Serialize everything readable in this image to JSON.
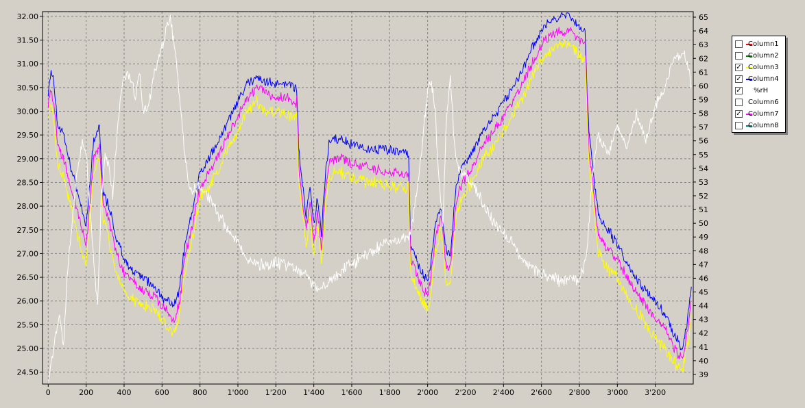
{
  "chart_data": {
    "type": "line",
    "background_color": "#d4d0c8",
    "plot_background_color": "#d4d0c8",
    "grid": true,
    "legend_placement": "right",
    "xlim": [
      -30,
      3400
    ],
    "ylim_left": [
      24.25,
      32.1
    ],
    "ylim_right": [
      38.3,
      65.4
    ],
    "x_ticks": [
      0,
      200,
      400,
      600,
      800,
      1000,
      1200,
      1400,
      1600,
      1800,
      2000,
      2200,
      2400,
      2600,
      2800,
      3000,
      3200
    ],
    "x_tick_labels": [
      "0",
      "200",
      "400",
      "600",
      "800",
      "1'000",
      "1'200",
      "1'400",
      "1'600",
      "1'800",
      "2'000",
      "2'200",
      "2'400",
      "2'600",
      "2'800",
      "3'000",
      "3'200"
    ],
    "y_left_ticks": [
      24.5,
      25.0,
      25.5,
      26.0,
      26.5,
      27.0,
      27.5,
      28.0,
      28.5,
      29.0,
      29.5,
      30.0,
      30.5,
      31.0,
      31.5,
      32.0
    ],
    "y_left_tick_labels": [
      "24.50",
      "25.00",
      "25.50",
      "26.00",
      "26.50",
      "27.00",
      "27.50",
      "28.00",
      "28.50",
      "29.00",
      "29.50",
      "30.00",
      "30.50",
      "31.00",
      "31.50",
      "32.00"
    ],
    "y_right_ticks": [
      39,
      40,
      41,
      42,
      43,
      44,
      45,
      46,
      47,
      48,
      49,
      50,
      51,
      52,
      53,
      54,
      55,
      56,
      57,
      58,
      59,
      60,
      61,
      62,
      63,
      64,
      65
    ],
    "y_right_tick_labels": [
      "39",
      "40",
      "41",
      "42",
      "43",
      "44",
      "45",
      "46",
      "47",
      "48",
      "49",
      "50",
      "51",
      "52",
      "53",
      "54",
      "55",
      "56",
      "57",
      "58",
      "59",
      "60",
      "61",
      "62",
      "63",
      "64",
      "65"
    ],
    "legend": [
      {
        "label": "Column1",
        "color": "#ff0000",
        "checked": false
      },
      {
        "label": "Column2",
        "color": "#008000",
        "checked": false
      },
      {
        "label": "Column3",
        "color": "#ffff00",
        "checked": true
      },
      {
        "label": "Column4",
        "color": "#0000ff",
        "checked": true
      },
      {
        "label": "%rH",
        "color": "#ffffff",
        "checked": true
      },
      {
        "label": "Column6",
        "color": "#ffffff",
        "checked": false
      },
      {
        "label": "Column7",
        "color": "#ff00ff",
        "checked": true
      },
      {
        "label": "Column8",
        "color": "#008080",
        "checked": false
      }
    ],
    "series": [
      {
        "name": "Column4",
        "color": "#0000ff",
        "axis": "left",
        "noise": 0.3,
        "x": [
          0,
          15,
          30,
          50,
          80,
          120,
          160,
          200,
          240,
          270,
          290,
          320,
          360,
          400,
          450,
          500,
          560,
          620,
          660,
          690,
          720,
          760,
          800,
          850,
          900,
          950,
          1000,
          1050,
          1100,
          1150,
          1200,
          1250,
          1310,
          1320,
          1340,
          1360,
          1380,
          1400,
          1420,
          1440,
          1460,
          1480,
          1500,
          1550,
          1600,
          1700,
          1800,
          1900,
          1910,
          1940,
          1970,
          2000,
          2020,
          2040,
          2070,
          2100,
          2120,
          2150,
          2180,
          2220,
          2280,
          2350,
          2400,
          2450,
          2500,
          2550,
          2600,
          2650,
          2700,
          2750,
          2800,
          2830,
          2850,
          2870,
          2900,
          2950,
          3000,
          3050,
          3100,
          3150,
          3200,
          3250,
          3300,
          3340,
          3370,
          3390
        ],
        "y": [
          30.4,
          30.9,
          30.6,
          29.7,
          29.5,
          28.8,
          28.2,
          27.6,
          29.4,
          29.7,
          28.3,
          28.0,
          27.3,
          26.9,
          26.6,
          26.5,
          26.3,
          26.0,
          25.9,
          26.2,
          27.2,
          27.9,
          28.7,
          29.0,
          29.4,
          29.8,
          30.2,
          30.6,
          30.7,
          30.6,
          30.6,
          30.6,
          30.5,
          29.2,
          28.5,
          27.8,
          28.4,
          27.6,
          28.2,
          27.4,
          28.6,
          29.3,
          29.4,
          29.4,
          29.3,
          29.2,
          29.2,
          29.1,
          27.2,
          26.9,
          26.6,
          26.4,
          26.9,
          27.6,
          28.0,
          27.0,
          27.0,
          28.4,
          28.8,
          29.0,
          29.5,
          29.9,
          30.2,
          30.5,
          30.9,
          31.3,
          31.7,
          31.9,
          32.0,
          32.0,
          31.8,
          31.6,
          29.5,
          28.8,
          27.8,
          27.5,
          27.2,
          26.8,
          26.5,
          26.2,
          26.0,
          25.7,
          25.3,
          25.0,
          25.6,
          26.3
        ]
      },
      {
        "name": "Column7",
        "color": "#ff00ff",
        "axis": "left",
        "noise": 0.3,
        "x": [
          0,
          15,
          30,
          50,
          80,
          120,
          160,
          200,
          240,
          270,
          290,
          320,
          360,
          400,
          450,
          500,
          560,
          620,
          660,
          690,
          720,
          760,
          800,
          850,
          900,
          950,
          1000,
          1050,
          1100,
          1150,
          1200,
          1250,
          1310,
          1320,
          1340,
          1360,
          1380,
          1400,
          1420,
          1440,
          1460,
          1480,
          1500,
          1550,
          1600,
          1700,
          1800,
          1900,
          1910,
          1940,
          1970,
          2000,
          2020,
          2040,
          2070,
          2100,
          2120,
          2150,
          2180,
          2220,
          2280,
          2350,
          2400,
          2450,
          2500,
          2550,
          2600,
          2650,
          2700,
          2750,
          2800,
          2830,
          2850,
          2870,
          2900,
          2950,
          3000,
          3050,
          3100,
          3150,
          3200,
          3250,
          3300,
          3340,
          3370,
          3390
        ],
        "y": [
          30.2,
          30.5,
          30.2,
          29.3,
          29.0,
          28.4,
          27.8,
          27.2,
          29.0,
          29.3,
          28.0,
          27.7,
          27.0,
          26.6,
          26.4,
          26.2,
          26.1,
          25.8,
          25.6,
          25.9,
          26.9,
          27.6,
          28.4,
          28.7,
          29.1,
          29.5,
          29.9,
          30.3,
          30.5,
          30.4,
          30.3,
          30.3,
          30.2,
          28.9,
          28.1,
          27.5,
          28.1,
          27.2,
          27.9,
          27.1,
          28.3,
          28.9,
          29.0,
          29.0,
          28.9,
          28.8,
          28.7,
          28.7,
          26.9,
          26.6,
          26.3,
          26.1,
          26.6,
          27.3,
          27.8,
          26.7,
          26.7,
          28.1,
          28.5,
          28.7,
          29.2,
          29.6,
          29.9,
          30.2,
          30.6,
          31.0,
          31.4,
          31.6,
          31.7,
          31.7,
          31.5,
          31.4,
          29.2,
          28.5,
          27.4,
          27.1,
          26.9,
          26.5,
          26.2,
          25.9,
          25.6,
          25.4,
          25.0,
          24.8,
          25.3,
          26.0
        ]
      },
      {
        "name": "Column3",
        "color": "#ffff00",
        "axis": "left",
        "noise": 0.35,
        "x": [
          0,
          15,
          30,
          50,
          80,
          120,
          160,
          200,
          240,
          270,
          290,
          320,
          360,
          400,
          450,
          500,
          560,
          620,
          660,
          690,
          720,
          760,
          800,
          850,
          900,
          950,
          1000,
          1050,
          1100,
          1150,
          1200,
          1250,
          1310,
          1320,
          1340,
          1360,
          1380,
          1400,
          1420,
          1440,
          1460,
          1480,
          1500,
          1550,
          1600,
          1700,
          1800,
          1900,
          1910,
          1940,
          1970,
          2000,
          2020,
          2040,
          2070,
          2100,
          2120,
          2150,
          2180,
          2220,
          2280,
          2350,
          2400,
          2450,
          2500,
          2550,
          2600,
          2650,
          2700,
          2750,
          2800,
          2830,
          2850,
          2870,
          2900,
          2950,
          3000,
          3050,
          3100,
          3150,
          3200,
          3250,
          3300,
          3340,
          3370,
          3390
        ],
        "y": [
          30.0,
          30.2,
          29.8,
          28.9,
          28.6,
          28.0,
          27.3,
          26.8,
          28.7,
          29.0,
          27.7,
          27.3,
          26.6,
          26.2,
          26.0,
          25.9,
          25.8,
          25.5,
          25.3,
          25.6,
          26.6,
          27.3,
          28.2,
          28.4,
          28.8,
          29.2,
          29.6,
          30.0,
          30.2,
          30.0,
          30.0,
          29.9,
          29.9,
          28.6,
          27.8,
          27.2,
          27.8,
          26.9,
          27.6,
          26.8,
          28.0,
          28.6,
          28.7,
          28.7,
          28.6,
          28.5,
          28.4,
          28.4,
          26.6,
          26.3,
          26.0,
          25.8,
          26.3,
          27.0,
          27.5,
          26.4,
          26.4,
          27.8,
          28.2,
          28.4,
          28.9,
          29.3,
          29.6,
          29.9,
          30.3,
          30.7,
          31.1,
          31.3,
          31.4,
          31.4,
          31.2,
          31.1,
          28.9,
          28.2,
          27.0,
          26.7,
          26.5,
          26.1,
          25.8,
          25.5,
          25.2,
          25.0,
          24.7,
          24.5,
          25.0,
          25.7
        ]
      },
      {
        "name": "%rH",
        "color": "#ffffff",
        "axis": "right",
        "noise": 1.2,
        "x": [
          0,
          20,
          40,
          60,
          80,
          100,
          120,
          140,
          160,
          180,
          200,
          220,
          240,
          260,
          280,
          300,
          320,
          340,
          360,
          380,
          400,
          420,
          440,
          460,
          480,
          500,
          520,
          540,
          560,
          580,
          600,
          620,
          640,
          660,
          680,
          700,
          720,
          740,
          760,
          780,
          800,
          850,
          900,
          950,
          1000,
          1050,
          1100,
          1150,
          1200,
          1250,
          1300,
          1320,
          1340,
          1360,
          1380,
          1400,
          1420,
          1440,
          1460,
          1480,
          1500,
          1550,
          1600,
          1650,
          1700,
          1750,
          1800,
          1850,
          1900,
          1920,
          1940,
          1960,
          1980,
          2000,
          2020,
          2040,
          2060,
          2080,
          2100,
          2120,
          2140,
          2160,
          2180,
          2200,
          2250,
          2300,
          2350,
          2400,
          2450,
          2500,
          2550,
          2600,
          2650,
          2700,
          2750,
          2800,
          2820,
          2840,
          2860,
          2880,
          2900,
          2950,
          3000,
          3050,
          3100,
          3150,
          3200,
          3250,
          3300,
          3350,
          3380,
          3390
        ],
        "y": [
          38.5,
          40.0,
          42.0,
          43.5,
          41.0,
          46.0,
          49.0,
          52.0,
          54.5,
          56.0,
          55.0,
          51.0,
          47.0,
          44.0,
          52.0,
          55.0,
          54.0,
          52.0,
          56.0,
          59.0,
          60.5,
          61.0,
          60.5,
          59.0,
          61.0,
          58.0,
          58.5,
          59.5,
          61.0,
          62.0,
          63.0,
          64.0,
          65.0,
          63.5,
          61.0,
          58.0,
          55.0,
          53.0,
          52.5,
          52.5,
          52.8,
          51.8,
          50.5,
          49.5,
          48.5,
          47.5,
          47.0,
          47.0,
          47.2,
          47.0,
          46.8,
          46.5,
          46.3,
          46.2,
          46.0,
          45.5,
          45.2,
          45.2,
          45.5,
          45.8,
          46.0,
          46.5,
          47.0,
          47.5,
          48.0,
          48.3,
          48.6,
          48.8,
          49.0,
          50.0,
          52.0,
          54.0,
          57.0,
          59.5,
          60.5,
          58.0,
          53.0,
          50.0,
          58.0,
          60.5,
          56.0,
          54.0,
          53.8,
          53.5,
          52.5,
          51.2,
          50.0,
          49.3,
          48.5,
          47.5,
          46.8,
          46.3,
          46.0,
          45.8,
          45.8,
          46.0,
          46.5,
          48.0,
          52.0,
          55.0,
          56.5,
          55.0,
          57.0,
          55.5,
          58.0,
          56.0,
          58.5,
          60.0,
          62.0,
          62.5,
          61.0,
          60.0
        ]
      }
    ]
  }
}
